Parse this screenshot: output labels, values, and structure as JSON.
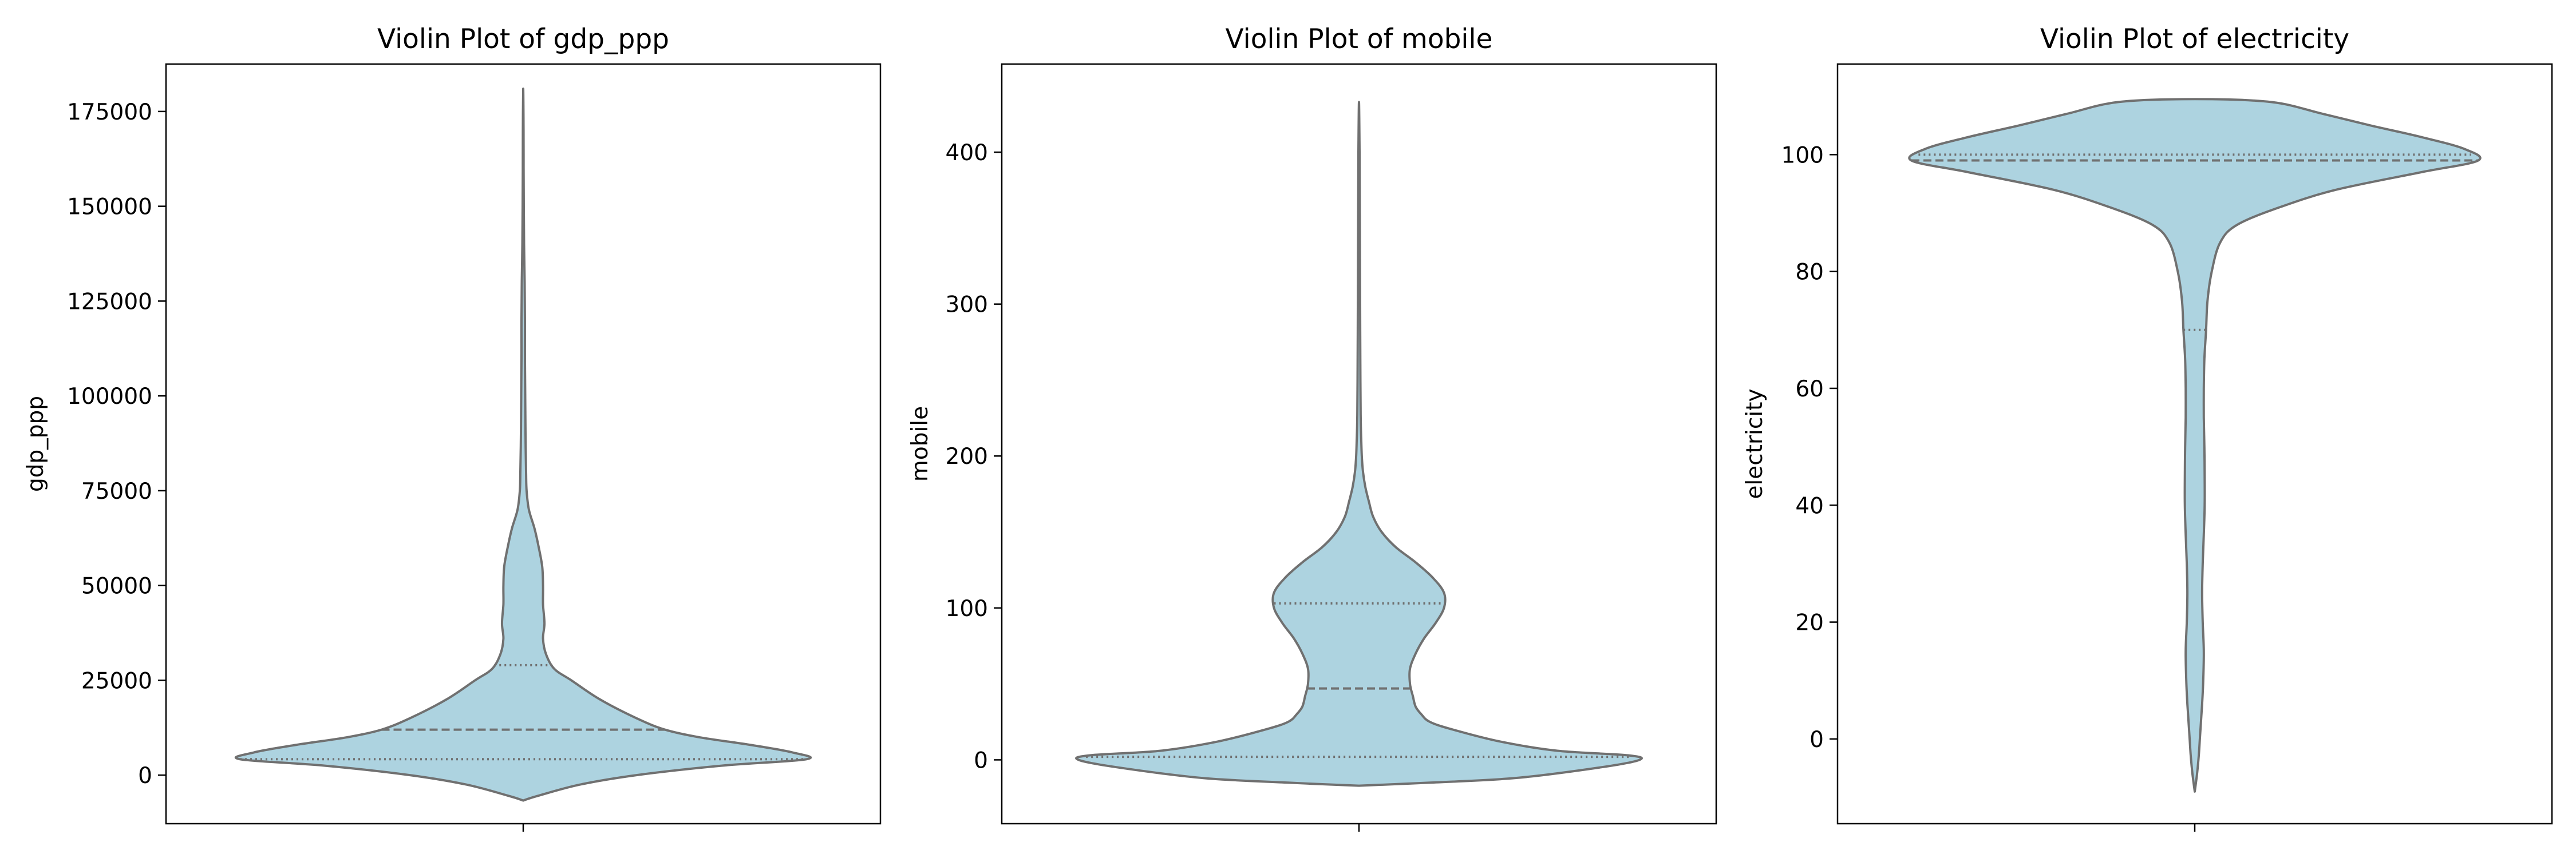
{
  "figure": {
    "background": "#ffffff",
    "violin_fill": "#add3e0",
    "violin_edge": "#707070"
  },
  "chart_data": [
    {
      "type": "violin",
      "title": "Violin Plot of gdp_ppp",
      "ylabel": "gdp_ppp",
      "ylim": [
        -12800,
        187500
      ],
      "yticks": [
        0,
        25000,
        50000,
        75000,
        100000,
        125000,
        150000,
        175000
      ],
      "ytick_labels": [
        "0",
        "25000",
        "50000",
        "75000",
        "100000",
        "125000",
        "150000",
        "175000"
      ],
      "quartiles": {
        "q1": 4200,
        "median": 12000,
        "q3": 29000
      },
      "profile": [
        [
          -6700,
          0.0
        ],
        [
          -5500,
          0.05
        ],
        [
          -2500,
          0.2
        ],
        [
          0,
          0.4
        ],
        [
          2500,
          0.7
        ],
        [
          4200,
          1.0
        ],
        [
          6000,
          0.95
        ],
        [
          8000,
          0.8
        ],
        [
          10000,
          0.62
        ],
        [
          12000,
          0.5
        ],
        [
          15000,
          0.4
        ],
        [
          20000,
          0.27
        ],
        [
          25000,
          0.17
        ],
        [
          28000,
          0.11
        ],
        [
          32000,
          0.08
        ],
        [
          36000,
          0.07
        ],
        [
          40000,
          0.075
        ],
        [
          45000,
          0.07
        ],
        [
          50000,
          0.07
        ],
        [
          55000,
          0.067
        ],
        [
          60000,
          0.055
        ],
        [
          65000,
          0.04
        ],
        [
          70000,
          0.02
        ],
        [
          75000,
          0.012
        ],
        [
          80000,
          0.01
        ],
        [
          90000,
          0.008
        ],
        [
          100000,
          0.007
        ],
        [
          110000,
          0.006
        ],
        [
          120000,
          0.006
        ],
        [
          130000,
          0.005
        ],
        [
          140000,
          0.003
        ],
        [
          150000,
          0.002
        ],
        [
          160000,
          0.0015
        ],
        [
          170000,
          0.0012
        ],
        [
          181000,
          0.0
        ]
      ]
    },
    {
      "type": "violin",
      "title": "Violin Plot of mobile",
      "ylabel": "mobile",
      "ylim": [
        -42,
        458
      ],
      "yticks": [
        0,
        100,
        200,
        300,
        400
      ],
      "ytick_labels": [
        "0",
        "100",
        "200",
        "300",
        "400"
      ],
      "quartiles": {
        "q1": 2,
        "median": 47,
        "q3": 103
      },
      "profile": [
        [
          -17,
          0.0
        ],
        [
          -15,
          0.25
        ],
        [
          -12,
          0.55
        ],
        [
          -5,
          0.85
        ],
        [
          0,
          0.99
        ],
        [
          3,
          0.95
        ],
        [
          6,
          0.7
        ],
        [
          12,
          0.5
        ],
        [
          20,
          0.33
        ],
        [
          25,
          0.25
        ],
        [
          30,
          0.22
        ],
        [
          35,
          0.2
        ],
        [
          42,
          0.19
        ],
        [
          50,
          0.18
        ],
        [
          60,
          0.18
        ],
        [
          70,
          0.2
        ],
        [
          80,
          0.23
        ],
        [
          90,
          0.27
        ],
        [
          100,
          0.3
        ],
        [
          110,
          0.3
        ],
        [
          120,
          0.26
        ],
        [
          130,
          0.2
        ],
        [
          140,
          0.13
        ],
        [
          150,
          0.08
        ],
        [
          160,
          0.05
        ],
        [
          170,
          0.035
        ],
        [
          180,
          0.022
        ],
        [
          190,
          0.014
        ],
        [
          200,
          0.01
        ],
        [
          210,
          0.008
        ],
        [
          225,
          0.006
        ],
        [
          250,
          0.005
        ],
        [
          300,
          0.004
        ],
        [
          350,
          0.003
        ],
        [
          400,
          0.002
        ],
        [
          433,
          0.0
        ]
      ]
    },
    {
      "type": "violin",
      "title": "Violin Plot of electricity",
      "ylabel": "electricity",
      "ylim": [
        -14.5,
        115.5
      ],
      "yticks": [
        0,
        20,
        40,
        60,
        80,
        100
      ],
      "ytick_labels": [
        "0",
        "20",
        "40",
        "60",
        "80",
        "100"
      ],
      "quartiles": {
        "q1": 70,
        "median": 99,
        "q3": 100
      },
      "profile": [
        [
          -9,
          0.0
        ],
        [
          -6,
          0.008
        ],
        [
          -3,
          0.014
        ],
        [
          0,
          0.018
        ],
        [
          3,
          0.022
        ],
        [
          6,
          0.026
        ],
        [
          10,
          0.03
        ],
        [
          15,
          0.032
        ],
        [
          20,
          0.028
        ],
        [
          25,
          0.026
        ],
        [
          30,
          0.028
        ],
        [
          35,
          0.032
        ],
        [
          40,
          0.035
        ],
        [
          45,
          0.035
        ],
        [
          50,
          0.034
        ],
        [
          55,
          0.032
        ],
        [
          60,
          0.032
        ],
        [
          65,
          0.034
        ],
        [
          70,
          0.04
        ],
        [
          75,
          0.045
        ],
        [
          80,
          0.06
        ],
        [
          85,
          0.09
        ],
        [
          88,
          0.15
        ],
        [
          91,
          0.3
        ],
        [
          94,
          0.5
        ],
        [
          97,
          0.8
        ],
        [
          99,
          1.0
        ],
        [
          101,
          0.95
        ],
        [
          103,
          0.8
        ],
        [
          105,
          0.62
        ],
        [
          107,
          0.45
        ],
        [
          109,
          0.27
        ],
        [
          109.5,
          0.0
        ]
      ]
    }
  ]
}
